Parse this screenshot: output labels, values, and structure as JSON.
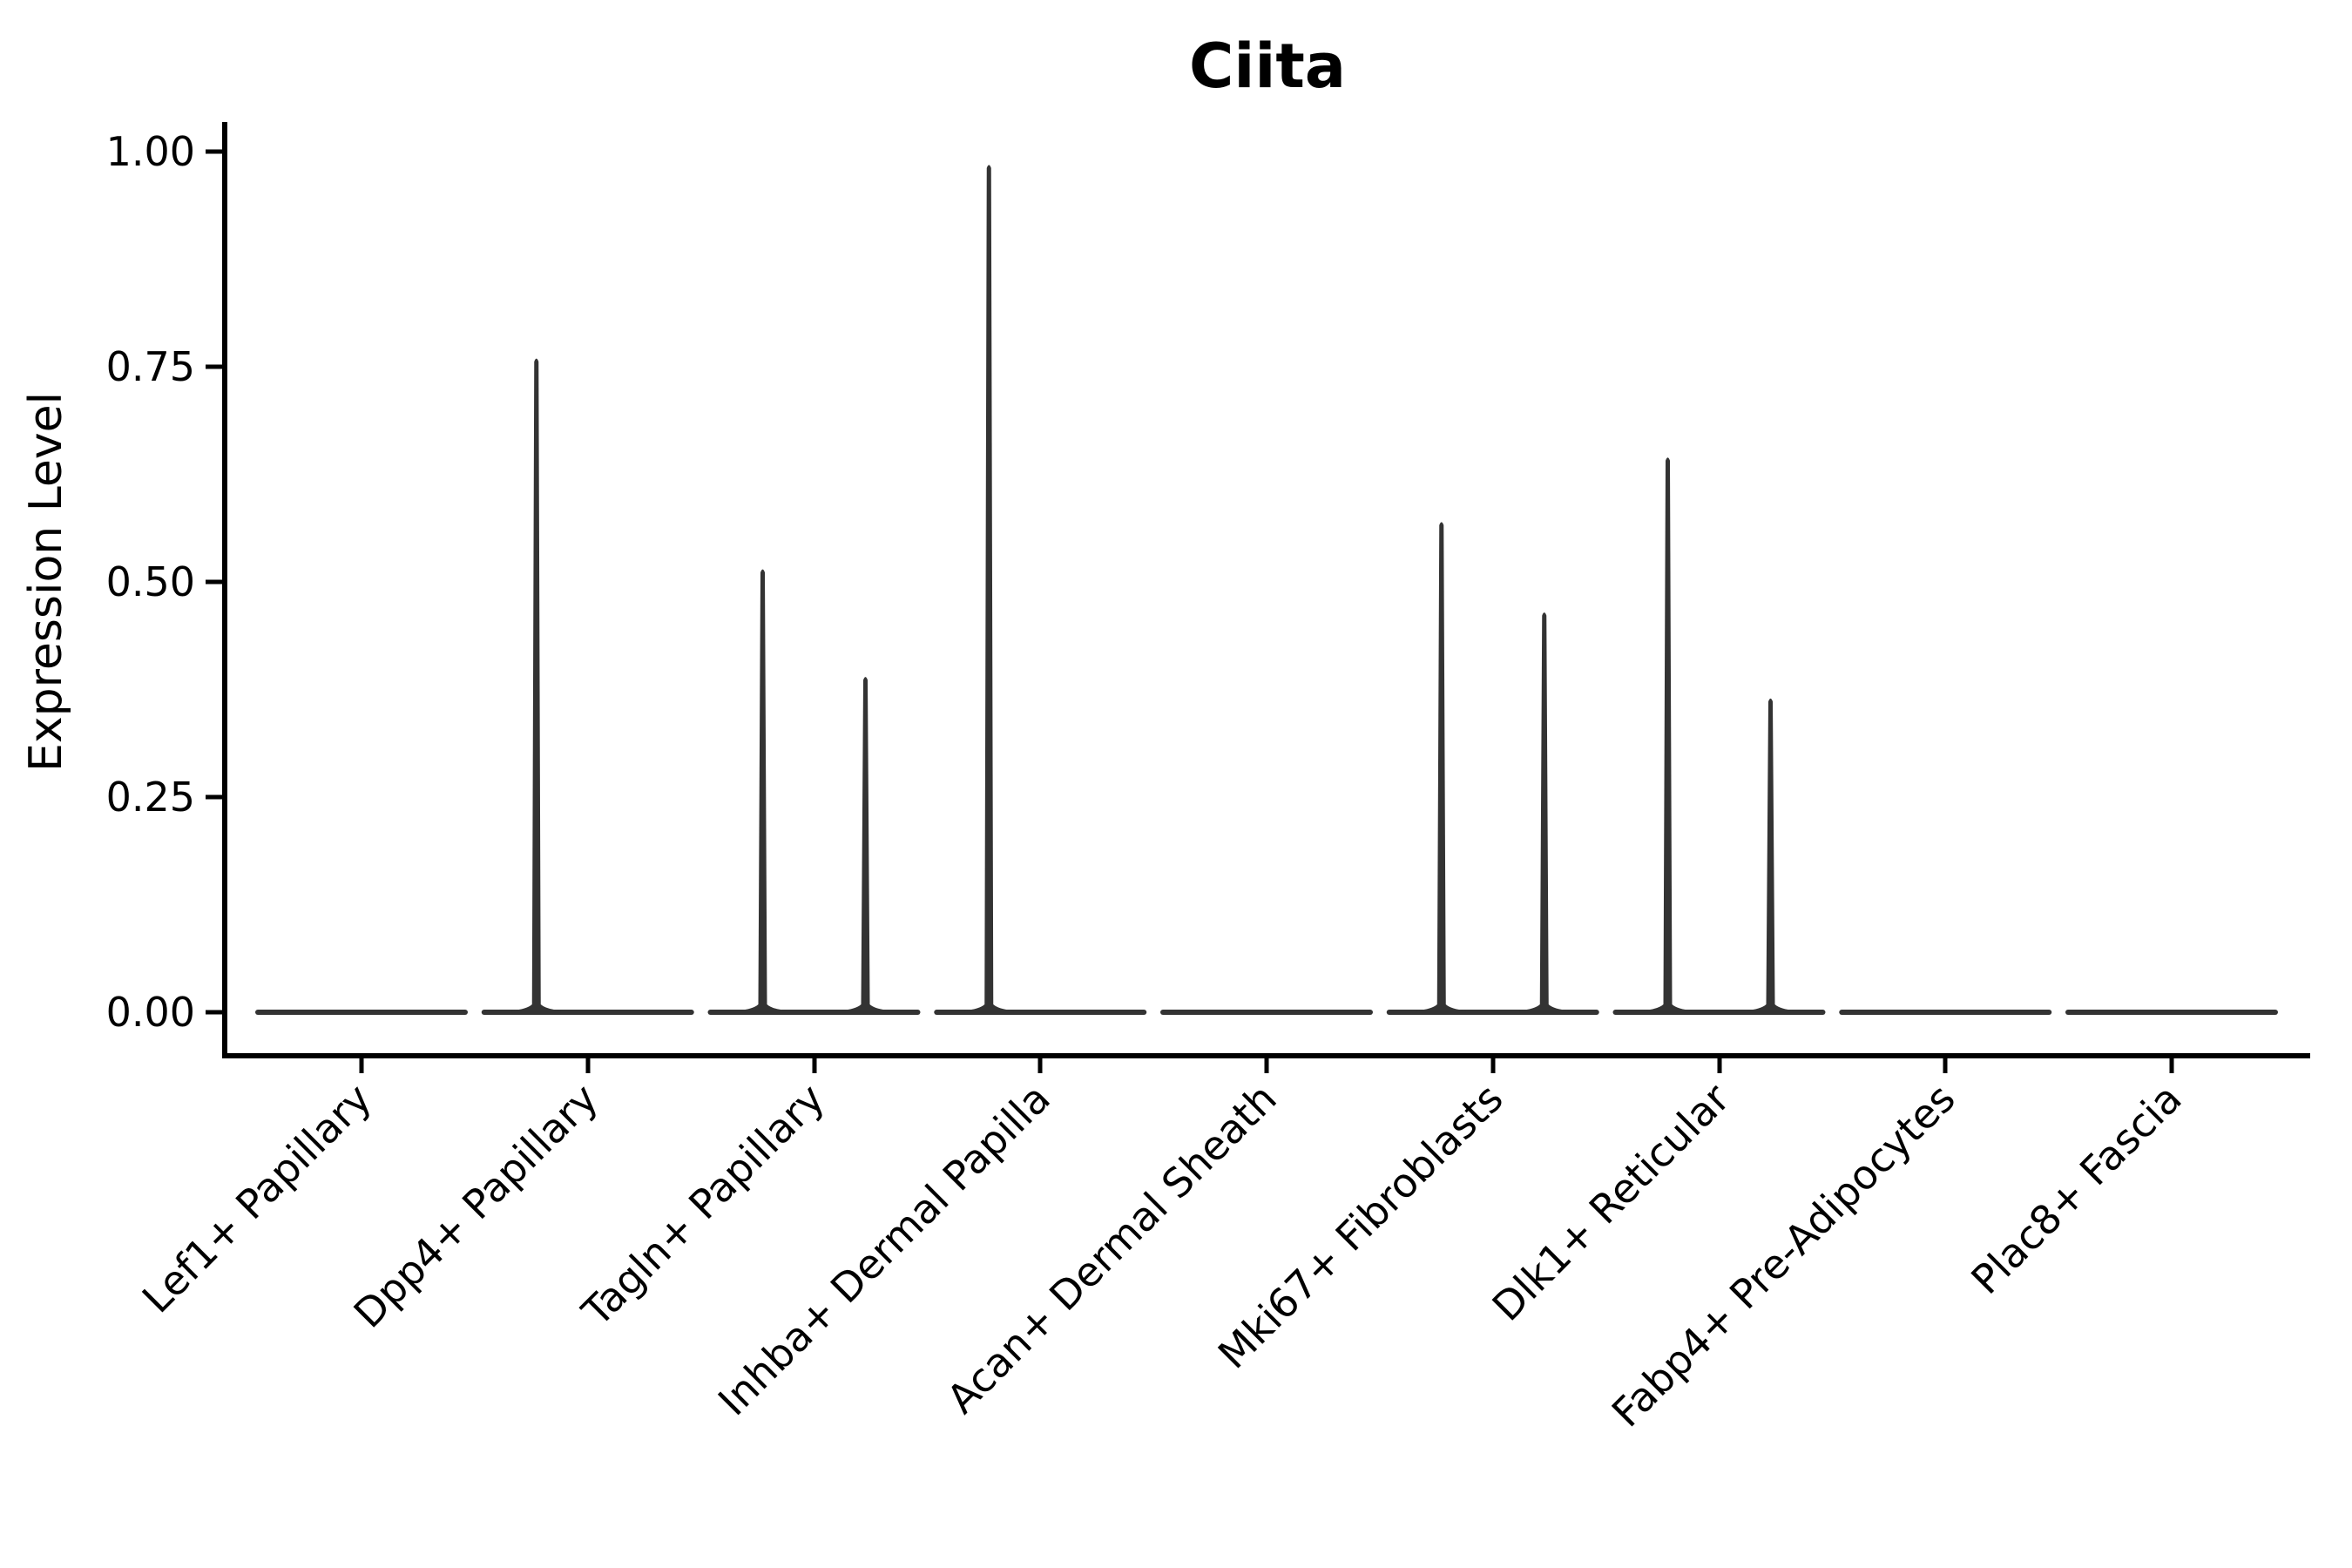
{
  "chart_data": {
    "type": "violin",
    "title": "Ciita",
    "xlabel": "",
    "ylabel": "Expression Level",
    "ylim": [
      0,
      1
    ],
    "yticks": [
      0.0,
      0.25,
      0.5,
      0.75,
      1.0
    ],
    "ytick_labels": [
      "0.00",
      "0.25",
      "0.50",
      "0.75",
      "1.00"
    ],
    "grid": false,
    "legend": "none",
    "categories": [
      "Lef1+ Papillary",
      "Dpp4+ Papillary",
      "Tagln+ Papillary",
      "Inhba+ Dermal Papilla",
      "Acan+ Dermal Sheath",
      "Mki67+ Fibroblasts",
      "Dlk1+ Reticular",
      "Fabp4+ Pre-Adipocytes",
      "Plac8+ Fascia"
    ],
    "series": [
      {
        "name": "Lef1+ Papillary",
        "baseline_value": 0,
        "spikes": []
      },
      {
        "name": "Dpp4+ Papillary",
        "baseline_value": 0,
        "spikes": [
          {
            "position": "left",
            "max": 0.76
          }
        ]
      },
      {
        "name": "Tagln+ Papillary",
        "baseline_value": 0,
        "spikes": [
          {
            "position": "left",
            "max": 0.515
          },
          {
            "position": "right",
            "max": 0.39
          }
        ]
      },
      {
        "name": "Inhba+ Dermal Papilla",
        "baseline_value": 0,
        "spikes": [
          {
            "position": "left",
            "max": 0.985
          }
        ]
      },
      {
        "name": "Acan+ Dermal Sheath",
        "baseline_value": 0,
        "spikes": []
      },
      {
        "name": "Mki67+ Fibroblasts",
        "baseline_value": 0,
        "spikes": [
          {
            "position": "left",
            "max": 0.57
          },
          {
            "position": "right",
            "max": 0.465
          }
        ]
      },
      {
        "name": "Dlk1+ Reticular",
        "baseline_value": 0,
        "spikes": [
          {
            "position": "left",
            "max": 0.645
          },
          {
            "position": "right",
            "max": 0.365
          }
        ]
      },
      {
        "name": "Fabp4+ Pre-Adipocytes",
        "baseline_value": 0,
        "spikes": []
      },
      {
        "name": "Plac8+ Fascia",
        "baseline_value": 0,
        "spikes": []
      }
    ],
    "colors": {
      "violin_stroke": "#333333",
      "axis": "#000000",
      "text": "#000000",
      "background": "#ffffff"
    }
  }
}
